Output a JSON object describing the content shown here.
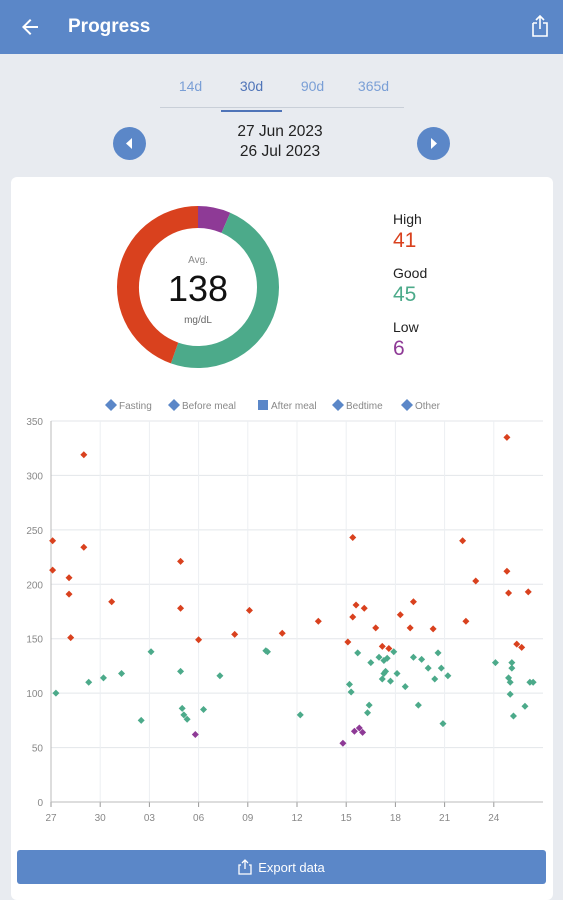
{
  "appbar": {
    "title": "Progress"
  },
  "tabs": [
    {
      "label": "14d",
      "active": false
    },
    {
      "label": "30d",
      "active": true
    },
    {
      "label": "90d",
      "active": false
    },
    {
      "label": "365d",
      "active": false
    }
  ],
  "range": {
    "start": "27 Jun 2023",
    "end": "26 Jul 2023"
  },
  "summary": {
    "avg_label": "Avg.",
    "avg_value": "138",
    "unit": "mg/dL",
    "high": {
      "label": "High",
      "value": "41",
      "color": "#d9411e"
    },
    "good": {
      "label": "Good",
      "value": "45",
      "color": "#4caa8a"
    },
    "low": {
      "label": "Low",
      "value": "6",
      "color": "#8e3a96"
    }
  },
  "colors": {
    "accent": "#5b87c8",
    "high": "#d9411e",
    "good": "#4caa8a",
    "low": "#8e3a96"
  },
  "export_label": "Export data",
  "chart_data": {
    "type": "scatter",
    "legend": [
      "Fasting",
      "Before meal",
      "After meal",
      "Bedtime",
      "Other"
    ],
    "legend_position": "top",
    "ylim": [
      0,
      350
    ],
    "yticks": [
      0,
      50,
      100,
      150,
      200,
      250,
      300,
      350
    ],
    "xlim": [
      0,
      30
    ],
    "xticks": [
      {
        "x": 0,
        "label": "27"
      },
      {
        "x": 3,
        "label": "30"
      },
      {
        "x": 6,
        "label": "03"
      },
      {
        "x": 9,
        "label": "06"
      },
      {
        "x": 12,
        "label": "09"
      },
      {
        "x": 15,
        "label": "12"
      },
      {
        "x": 18,
        "label": "15"
      },
      {
        "x": 21,
        "label": "18"
      },
      {
        "x": 24,
        "label": "21"
      },
      {
        "x": 27,
        "label": "24"
      }
    ],
    "grid": true,
    "thresholds": {
      "low": 70,
      "high": 140
    },
    "points": [
      [
        0.1,
        240
      ],
      [
        0.1,
        213
      ],
      [
        0.3,
        100
      ],
      [
        1.1,
        206
      ],
      [
        1.1,
        191
      ],
      [
        1.2,
        151
      ],
      [
        2.0,
        319
      ],
      [
        2.0,
        234
      ],
      [
        2.3,
        110
      ],
      [
        3.2,
        114
      ],
      [
        3.7,
        184
      ],
      [
        4.3,
        118
      ],
      [
        5.5,
        75
      ],
      [
        6.1,
        138
      ],
      [
        7.9,
        221
      ],
      [
        7.9,
        178
      ],
      [
        7.9,
        120
      ],
      [
        8.0,
        86
      ],
      [
        8.1,
        80
      ],
      [
        8.3,
        76
      ],
      [
        8.8,
        62
      ],
      [
        9.0,
        149
      ],
      [
        9.3,
        85
      ],
      [
        10.3,
        116
      ],
      [
        11.2,
        154
      ],
      [
        12.1,
        176
      ],
      [
        13.1,
        139
      ],
      [
        13.2,
        138
      ],
      [
        14.1,
        155
      ],
      [
        15.2,
        80
      ],
      [
        16.3,
        166
      ],
      [
        17.8,
        54
      ],
      [
        18.1,
        147
      ],
      [
        18.2,
        108
      ],
      [
        18.3,
        101
      ],
      [
        18.4,
        243
      ],
      [
        18.4,
        170
      ],
      [
        18.5,
        65
      ],
      [
        18.6,
        181
      ],
      [
        18.7,
        137
      ],
      [
        18.8,
        68
      ],
      [
        19.0,
        64
      ],
      [
        19.1,
        178
      ],
      [
        19.3,
        82
      ],
      [
        19.4,
        89
      ],
      [
        19.5,
        128
      ],
      [
        19.8,
        160
      ],
      [
        20.0,
        133
      ],
      [
        20.2,
        143
      ],
      [
        20.2,
        113
      ],
      [
        20.3,
        118
      ],
      [
        20.3,
        130
      ],
      [
        20.4,
        120
      ],
      [
        20.5,
        132
      ],
      [
        20.6,
        141
      ],
      [
        20.7,
        111
      ],
      [
        20.9,
        138
      ],
      [
        21.1,
        118
      ],
      [
        21.3,
        172
      ],
      [
        21.6,
        106
      ],
      [
        21.9,
        160
      ],
      [
        22.1,
        184
      ],
      [
        22.1,
        133
      ],
      [
        22.4,
        89
      ],
      [
        22.6,
        131
      ],
      [
        23.0,
        123
      ],
      [
        23.3,
        159
      ],
      [
        23.4,
        113
      ],
      [
        23.6,
        137
      ],
      [
        23.8,
        123
      ],
      [
        23.9,
        72
      ],
      [
        24.2,
        116
      ],
      [
        25.1,
        240
      ],
      [
        25.3,
        166
      ],
      [
        25.9,
        203
      ],
      [
        27.1,
        128
      ],
      [
        27.8,
        335
      ],
      [
        27.8,
        212
      ],
      [
        27.9,
        192
      ],
      [
        27.9,
        114
      ],
      [
        28.0,
        110
      ],
      [
        28.0,
        99
      ],
      [
        28.1,
        123
      ],
      [
        28.1,
        128
      ],
      [
        28.2,
        79
      ],
      [
        28.4,
        145
      ],
      [
        28.7,
        142
      ],
      [
        28.9,
        88
      ],
      [
        29.1,
        193
      ],
      [
        29.2,
        110
      ],
      [
        29.4,
        110
      ]
    ]
  }
}
